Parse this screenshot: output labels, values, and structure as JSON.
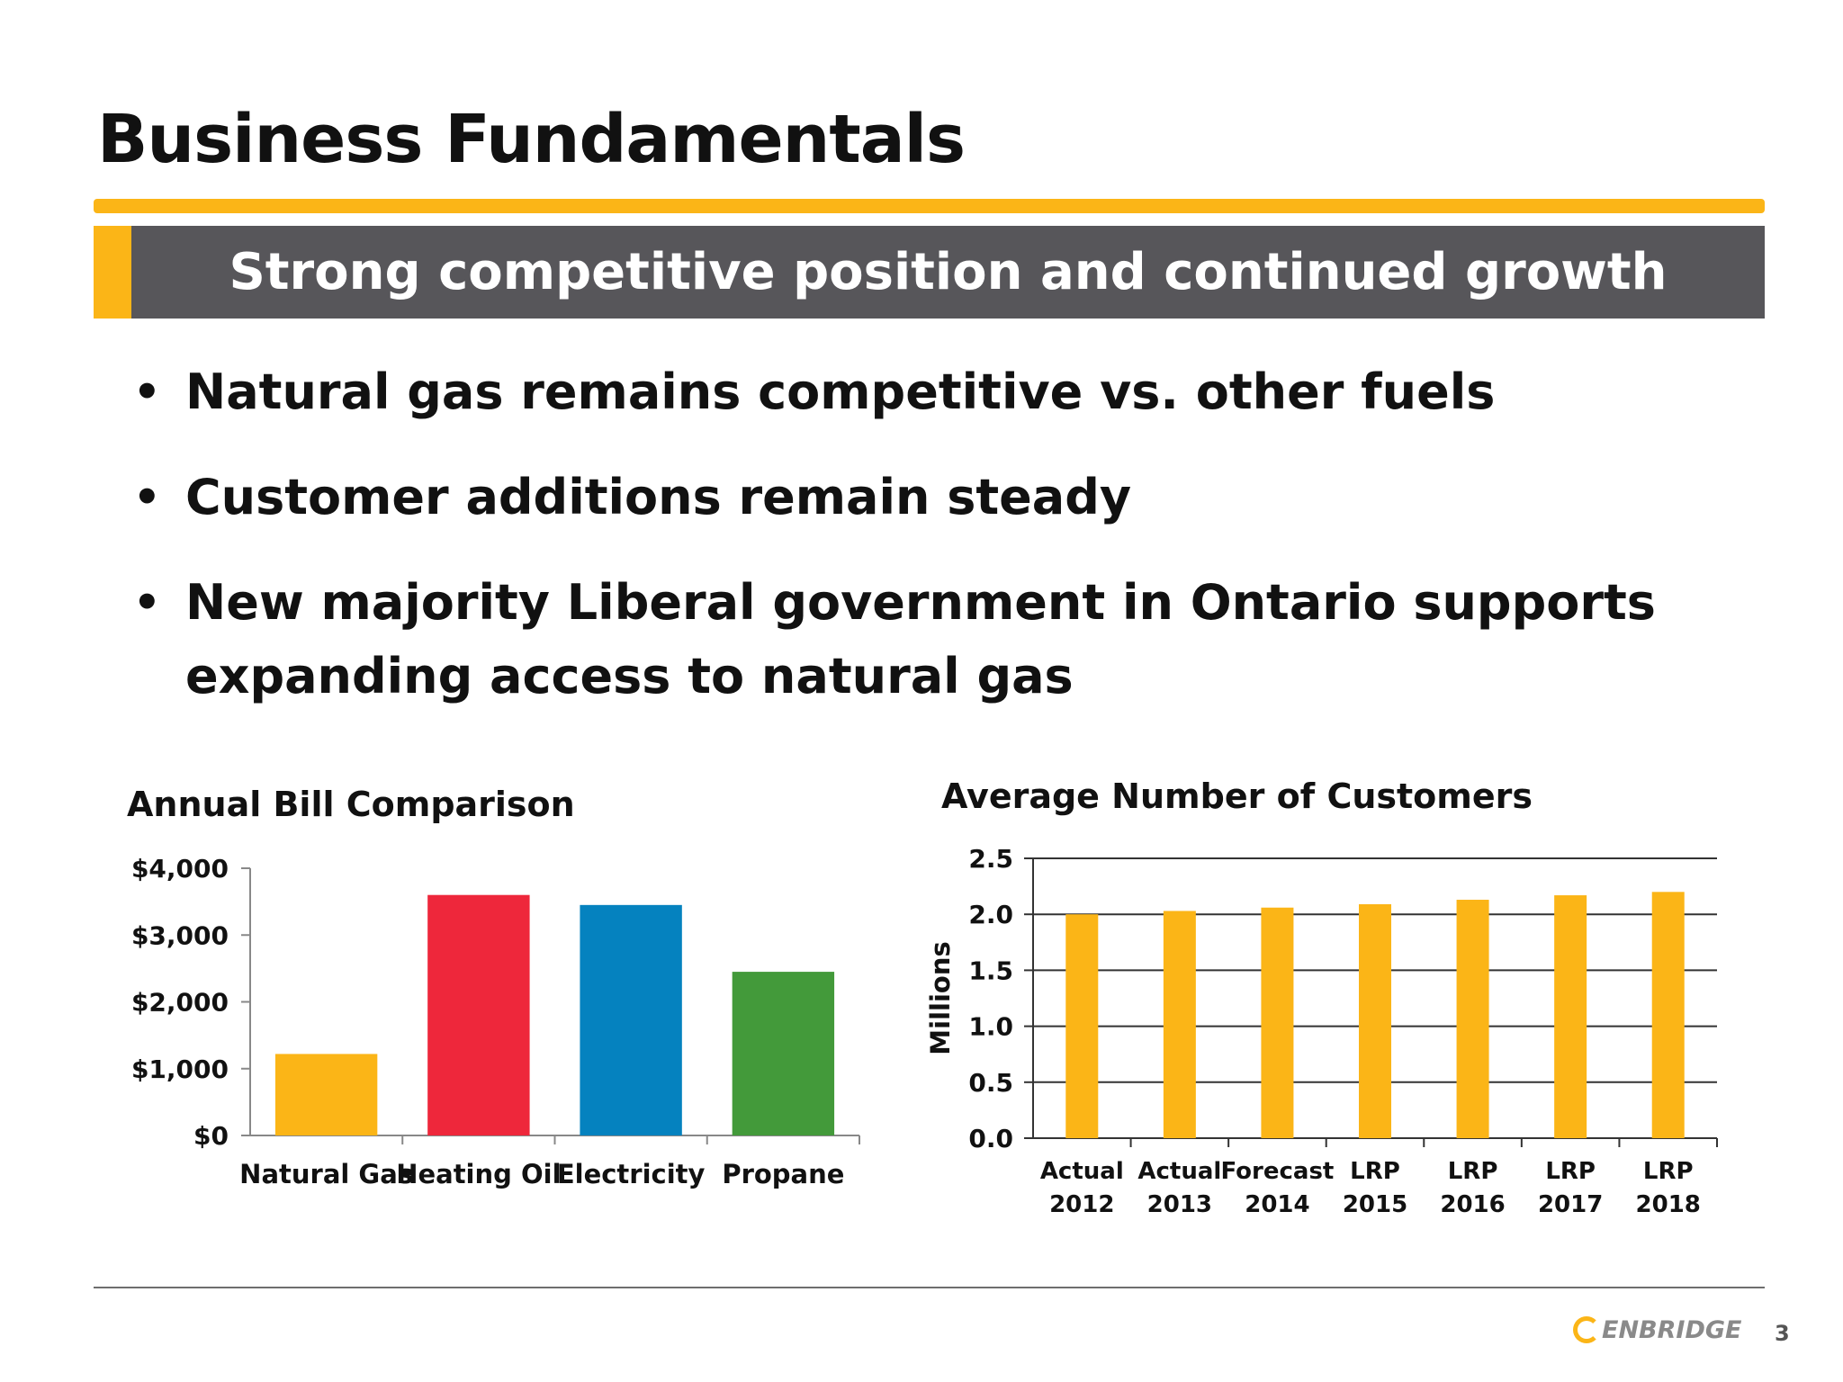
{
  "slide": {
    "title": "Business Fundamentals",
    "banner": "Strong competitive position and continued growth",
    "bullets": [
      "Natural gas remains competitive vs. other fuels",
      "Customer additions remain steady",
      "New majority Liberal government in Ontario supports expanding access to natural gas"
    ],
    "bullet_glyph": "•",
    "page_number": "3",
    "logo_text": "ENBRIDGE"
  },
  "colors": {
    "accent": "#fbb517",
    "banner_bg": "#57565a",
    "natural_gas": "#fbb517",
    "heating_oil": "#ee273b",
    "electricity": "#0582bf",
    "propane": "#439a3a"
  },
  "chart_data": [
    {
      "type": "bar",
      "title": "Annual Bill Comparison",
      "categories": [
        "Natural Gas",
        "Heating Oil",
        "Electricity",
        "Propane"
      ],
      "values": [
        1220,
        3600,
        3450,
        2450
      ],
      "bar_colors": [
        "#fbb517",
        "#ee273b",
        "#0582bf",
        "#439a3a"
      ],
      "ylim": [
        0,
        4000
      ],
      "yticks": [
        0,
        1000,
        2000,
        3000,
        4000
      ],
      "ytick_labels": [
        "$0",
        "$1,000",
        "$2,000",
        "$3,000",
        "$4,000"
      ],
      "xlabel": "",
      "ylabel": "",
      "grid": false
    },
    {
      "type": "bar",
      "title": "Average Number of Customers",
      "categories": [
        [
          "Actual",
          "2012"
        ],
        [
          "Actual",
          "2013"
        ],
        [
          "Forecast",
          "2014"
        ],
        [
          "LRP",
          "2015"
        ],
        [
          "LRP",
          "2016"
        ],
        [
          "LRP",
          "2017"
        ],
        [
          "LRP",
          "2018"
        ]
      ],
      "values": [
        2.0,
        2.03,
        2.06,
        2.09,
        2.13,
        2.17,
        2.2
      ],
      "bar_color": "#fbb517",
      "ylim": [
        0,
        2.5
      ],
      "yticks": [
        0,
        0.5,
        1.0,
        1.5,
        2.0,
        2.5
      ],
      "ytick_labels": [
        "0.0",
        "0.5",
        "1.0",
        "1.5",
        "2.0",
        "2.5"
      ],
      "xlabel": "",
      "ylabel": "Millions",
      "grid": true
    }
  ]
}
